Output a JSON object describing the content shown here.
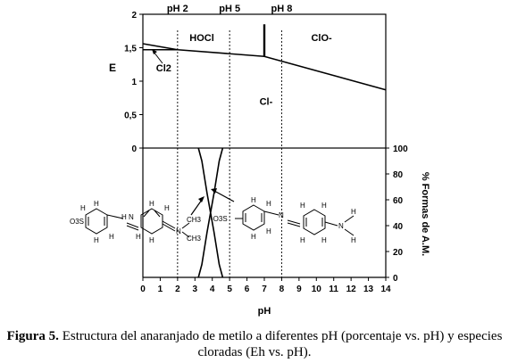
{
  "chart_data": [
    {
      "type": "line",
      "xlabel": "",
      "ylabel": "E",
      "xlim": [
        0,
        14
      ],
      "ylim": [
        0,
        2
      ],
      "y_ticks": [
        "0",
        "0,5",
        "1",
        "1,5",
        "2"
      ],
      "ph_markers": [
        {
          "x": 2,
          "label": "pH 2"
        },
        {
          "x": 5,
          "label": "pH 5"
        },
        {
          "x": 8,
          "label": "pH 8"
        }
      ],
      "region_labels": [
        {
          "text": "HOCl",
          "x": 3.4,
          "y": 1.6
        },
        {
          "text": "ClO-",
          "x": 10.3,
          "y": 1.6
        },
        {
          "text": "Cl-",
          "x": 7.1,
          "y": 0.65
        },
        {
          "text": "Cl2",
          "x": 1.2,
          "y": 1.15
        }
      ],
      "series": [
        {
          "values_xy": [
            [
              0,
              1.56
            ],
            [
              2,
              1.47
            ],
            [
              7,
              1.37
            ],
            [
              14,
              0.87
            ]
          ]
        },
        {
          "values_xy": [
            [
              0,
              1.47
            ],
            [
              2,
              1.47
            ]
          ]
        },
        {
          "values_xy": [
            [
              7,
              1.37
            ],
            [
              7,
              1.85
            ]
          ]
        }
      ]
    },
    {
      "type": "line",
      "xlabel": "pH",
      "ylabel": "% Formas de A.M.",
      "xlim": [
        0,
        14
      ],
      "ylim": [
        0,
        100
      ],
      "x_ticks": [
        "0",
        "1",
        "2",
        "3",
        "4",
        "5",
        "6",
        "7",
        "8",
        "9",
        "10",
        "11",
        "12",
        "13",
        "14"
      ],
      "y_ticks": [
        "0",
        "20",
        "40",
        "60",
        "80",
        "100"
      ],
      "series": [
        {
          "values_xy": [
            [
              3.2,
              100
            ],
            [
              3.4,
              90
            ],
            [
              3.7,
              65
            ],
            [
              3.9,
              50
            ],
            [
              4.1,
              35
            ],
            [
              4.4,
              10
            ],
            [
              4.6,
              0
            ]
          ]
        },
        {
          "values_xy": [
            [
              3.2,
              0
            ],
            [
              3.4,
              10
            ],
            [
              3.7,
              35
            ],
            [
              3.9,
              50
            ],
            [
              4.1,
              65
            ],
            [
              4.4,
              90
            ],
            [
              4.6,
              100
            ]
          ]
        }
      ]
    }
  ],
  "structures": {
    "acid_sulfonate": "O3S",
    "base_sulfonate": "-O3S",
    "ch3": "CH3",
    "h": "H",
    "n": "N"
  },
  "caption": {
    "label": "Figura 5.",
    "text": " Estructura del anaranjado de metilo a diferentes pH (porcentaje vs. pH) y especies cloradas (Eh vs. pH)."
  }
}
